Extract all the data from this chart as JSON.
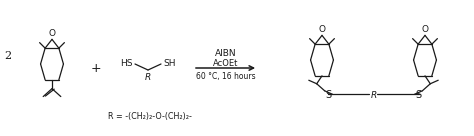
{
  "bg_color": "#ffffff",
  "line_color": "#1a1a1a",
  "text_color": "#1a1a1a",
  "figsize": [
    4.74,
    1.36
  ],
  "dpi": 100,
  "arrow_label_line1": "AIBN",
  "arrow_label_line2": "AcOEt",
  "arrow_label_line3": "60 °C, 16 hours",
  "plus_sign": "+",
  "coeff": "2",
  "R_def": "R = -(CH₂)₂-O-(CH₂)₂-",
  "thiol_label_left": "HS",
  "thiol_label_right": "SH",
  "thiol_R": "R",
  "product_S_left": "S",
  "product_S_right": "S",
  "product_R": "R",
  "epoxide_O": "O",
  "epoxide_O2": "O"
}
